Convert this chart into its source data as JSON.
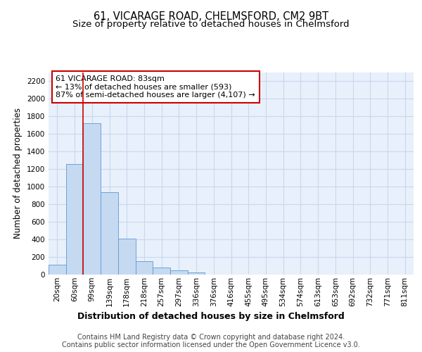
{
  "title_line1": "61, VICARAGE ROAD, CHELMSFORD, CM2 9BT",
  "title_line2": "Size of property relative to detached houses in Chelmsford",
  "xlabel": "Distribution of detached houses by size in Chelmsford",
  "ylabel": "Number of detached properties",
  "categories": [
    "20sqm",
    "60sqm",
    "99sqm",
    "139sqm",
    "178sqm",
    "218sqm",
    "257sqm",
    "297sqm",
    "336sqm",
    "376sqm",
    "416sqm",
    "455sqm",
    "495sqm",
    "534sqm",
    "574sqm",
    "613sqm",
    "653sqm",
    "692sqm",
    "732sqm",
    "771sqm",
    "811sqm"
  ],
  "values": [
    110,
    1260,
    1720,
    940,
    405,
    150,
    80,
    45,
    25,
    0,
    0,
    0,
    0,
    0,
    0,
    0,
    0,
    0,
    0,
    0,
    0
  ],
  "bar_color": "#c5d9f1",
  "bar_edge_color": "#5b9bd5",
  "bar_width": 1.0,
  "vline_x_index": 1.5,
  "vline_color": "#cc0000",
  "annotation_text": "61 VICARAGE ROAD: 83sqm\n← 13% of detached houses are smaller (593)\n87% of semi-detached houses are larger (4,107) →",
  "annotation_box_color": "#ffffff",
  "annotation_border_color": "#cc0000",
  "ylim": [
    0,
    2300
  ],
  "yticks": [
    0,
    200,
    400,
    600,
    800,
    1000,
    1200,
    1400,
    1600,
    1800,
    2000,
    2200
  ],
  "grid_color": "#c8d8ec",
  "background_color": "#e8f0fb",
  "footer_line1": "Contains HM Land Registry data © Crown copyright and database right 2024.",
  "footer_line2": "Contains public sector information licensed under the Open Government Licence v3.0.",
  "title_fontsize": 10.5,
  "subtitle_fontsize": 9.5,
  "ylabel_fontsize": 8.5,
  "xlabel_fontsize": 9,
  "tick_fontsize": 7.5,
  "annotation_fontsize": 8,
  "footer_fontsize": 7
}
